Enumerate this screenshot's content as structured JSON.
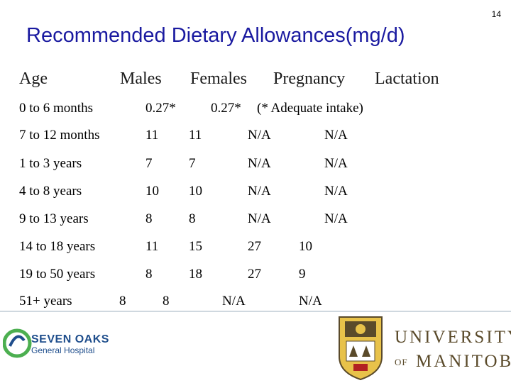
{
  "slide_number": "14",
  "title": "Recommended Dietary Allowances(mg/d)",
  "headers": [
    "Age",
    "Males",
    "Females",
    "Pregnancy",
    "Lactation"
  ],
  "rows": [
    {
      "age": "0 to 6 months",
      "values": [
        "0.27*",
        "0.27*",
        "(* Adequate intake)"
      ]
    },
    {
      "age": "7 to 12 months",
      "values": [
        "11",
        "11",
        "N/A",
        "N/A"
      ]
    },
    {
      "age": "1 to 3 years",
      "values": [
        "7",
        "7",
        "N/A",
        "N/A"
      ]
    },
    {
      "age": "4 to 8 years",
      "values": [
        "10",
        "10",
        "N/A",
        "N/A"
      ]
    },
    {
      "age": "9 to 13 years",
      "values": [
        "8",
        "8",
        "N/A",
        "N/A"
      ]
    },
    {
      "age": "14 to 18 years",
      "values": [
        "11",
        "15",
        "27",
        "10"
      ]
    },
    {
      "age": "19 to 50 years",
      "values": [
        "8",
        "18",
        "27",
        "9"
      ]
    },
    {
      "age": "51+ years",
      "values": [
        "8",
        "8",
        "N/A",
        "N/A"
      ]
    }
  ],
  "logos": {
    "seven_oaks": {
      "name": "SEVEN OAKS",
      "subtitle": "General Hospital",
      "color": "#1f4e8c",
      "accent": "#4caf50"
    },
    "university": {
      "line1": "UNIVERSITY",
      "of": "OF",
      "line2": "MANITOBA",
      "color": "#5a4a2a",
      "crest_color": "#e8c24a"
    }
  }
}
